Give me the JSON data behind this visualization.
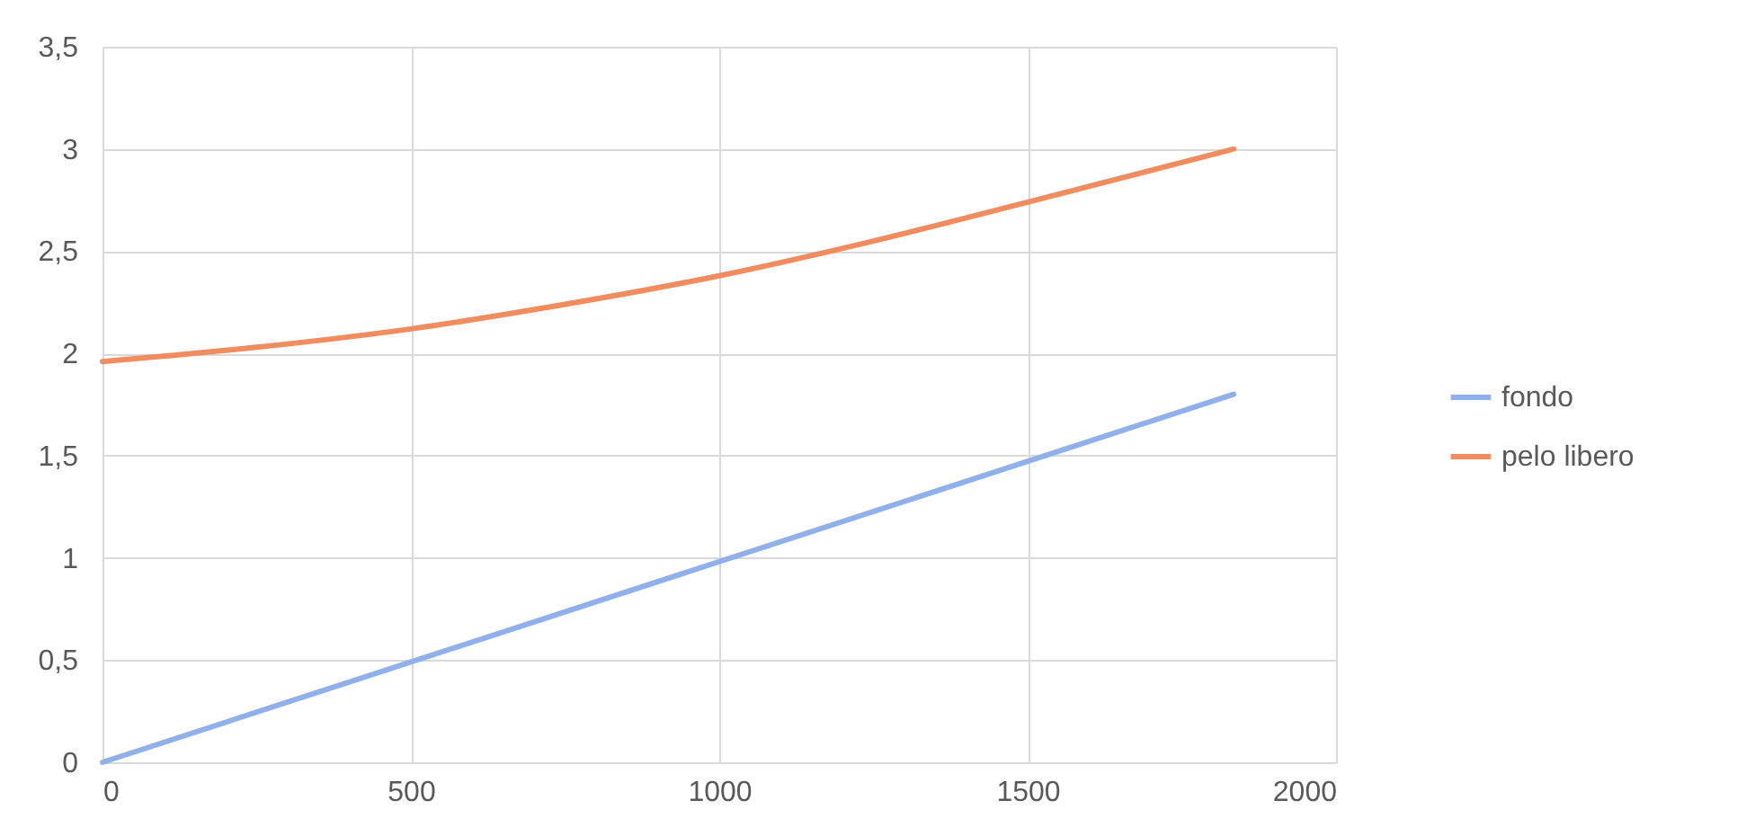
{
  "chart_data": {
    "type": "line",
    "xlim": [
      0,
      2000
    ],
    "xticks": [
      0,
      500,
      1000,
      1500,
      2000
    ],
    "ylim": [
      0,
      3.5
    ],
    "yticks": [
      0,
      {
        "value": 0.5,
        "label": "0,5"
      },
      1,
      {
        "value": 1.5,
        "label": "1,5"
      },
      2,
      {
        "value": 2.5,
        "label": "2,5"
      },
      3,
      {
        "value": 3.5,
        "label": "3,5"
      }
    ],
    "grid": true,
    "legend": "right",
    "line_style": "solid",
    "marker": "none",
    "series": [
      {
        "name": "fondo",
        "color": "#8fb0ea",
        "x": [
          0,
          1834
        ],
        "values": [
          0,
          1.8
        ]
      },
      {
        "name": "pelo libero",
        "color": "#f08c5e",
        "x": [
          0,
          250,
          500,
          750,
          1000,
          1250,
          1500,
          1834
        ],
        "values": [
          1.96,
          2.03,
          2.12,
          2.24,
          2.38,
          2.55,
          2.74,
          3.0
        ]
      }
    ]
  }
}
